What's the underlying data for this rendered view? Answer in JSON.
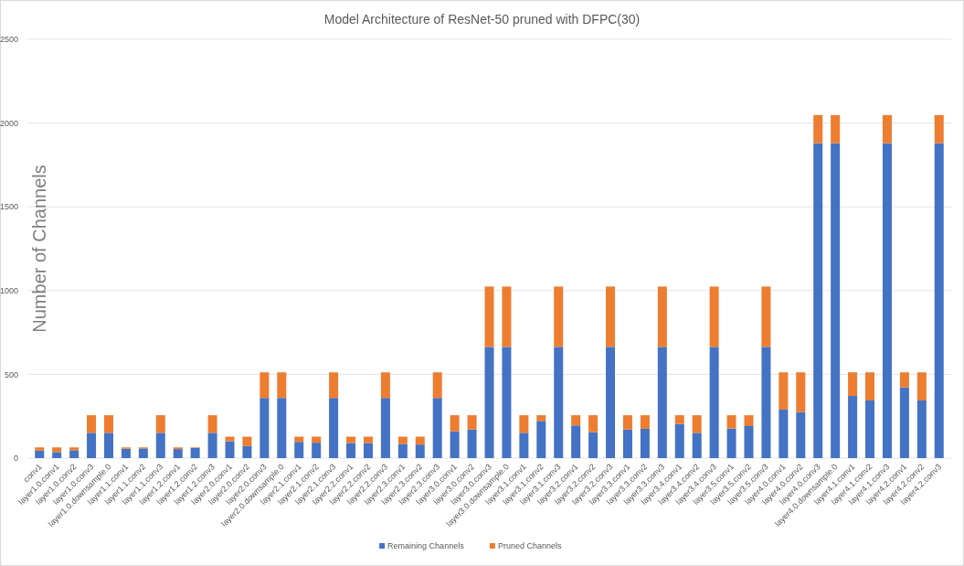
{
  "chart_data": {
    "type": "bar",
    "title": "Model Architecture of ResNet-50 pruned with DFPC(30)",
    "ylabel": "Number of Channels",
    "stacked": true,
    "grid": "y",
    "legend": "bottom",
    "categories": [
      "conv1",
      "layer1.0.conv1",
      "layer1.0.conv2",
      "layer1.0.conv3",
      "layer1.0.downsample.0",
      "layer1.1.conv1",
      "layer1.1.conv2",
      "layer1.1.conv3",
      "layer1.2.conv1",
      "layer1.2.conv2",
      "layer1.2.conv3",
      "layer2.0.conv1",
      "layer2.0.conv2",
      "layer2.0.conv3",
      "layer2.0.downsample.0",
      "layer2.1.conv1",
      "layer2.1.conv2",
      "layer2.1.conv3",
      "layer2.2.conv1",
      "layer2.2.conv2",
      "layer2.2.conv3",
      "layer2.3.conv1",
      "layer2.3.conv2",
      "layer2.3.conv3",
      "layer3.0.conv1",
      "layer3.0.conv2",
      "layer3.0.conv3",
      "layer3.0.downsample.0",
      "layer3.1.conv1",
      "layer3.1.conv2",
      "layer3.1.conv3",
      "layer3.2.conv1",
      "layer3.2.conv2",
      "layer3.2.conv3",
      "layer3.3.conv1",
      "layer3.3.conv2",
      "layer3.3.conv3",
      "layer3.4.conv1",
      "layer3.4.conv2",
      "layer3.4.conv3",
      "layer3.5.conv1",
      "layer3.5.conv2",
      "layer3.5.conv3",
      "layer4.0.conv1",
      "layer4.0.conv2",
      "layer4.0.conv3",
      "layer4.0.downsample.0",
      "layer4.1.conv1",
      "layer4.1.conv2",
      "layer4.1.conv3",
      "layer4.2.conv1",
      "layer4.2.conv2",
      "layer4.2.conv3"
    ],
    "series": [
      {
        "name": "Remaining Channels",
        "color": "#4472c4",
        "values": [
          45,
          36,
          47,
          151,
          151,
          56,
          58,
          151,
          54,
          60,
          151,
          101,
          72,
          359,
          359,
          97,
          92,
          359,
          90,
          90,
          359,
          85,
          81,
          359,
          160,
          171,
          664,
          664,
          151,
          222,
          664,
          195,
          155,
          664,
          171,
          175,
          664,
          204,
          151,
          664,
          177,
          191,
          664,
          290,
          274,
          1880,
          1880,
          371,
          344,
          1880,
          422,
          344,
          1880
        ]
      },
      {
        "name": "Pruned Channels",
        "color": "#ed7d31",
        "values": [
          19,
          28,
          17,
          105,
          105,
          8,
          6,
          105,
          10,
          4,
          105,
          27,
          56,
          153,
          153,
          31,
          36,
          153,
          38,
          38,
          153,
          43,
          47,
          153,
          96,
          85,
          360,
          360,
          105,
          34,
          360,
          61,
          101,
          360,
          85,
          81,
          360,
          52,
          105,
          360,
          79,
          65,
          360,
          222,
          238,
          168,
          168,
          141,
          168,
          168,
          90,
          168,
          168
        ]
      }
    ],
    "ylim": [
      0,
      2500
    ],
    "yticks": [
      0,
      500,
      1000,
      1500,
      2000,
      2500
    ]
  }
}
